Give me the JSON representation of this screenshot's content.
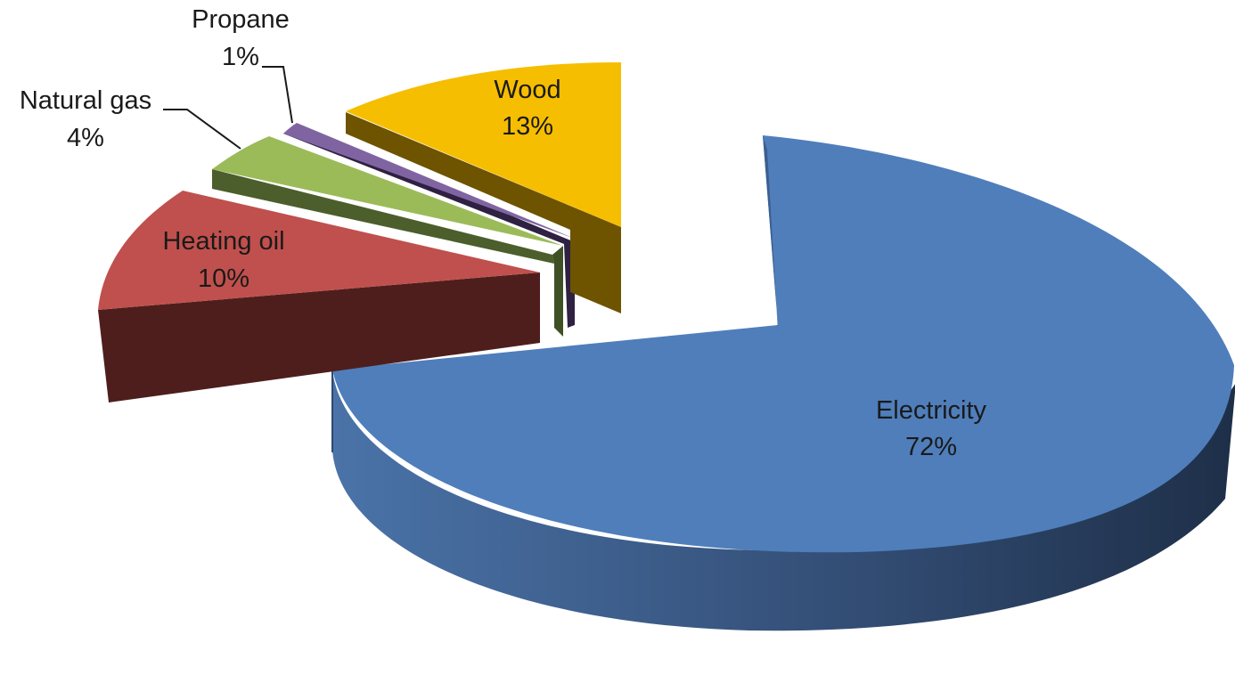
{
  "chart_data": {
    "type": "pie",
    "style": "3d-exploded",
    "title": "",
    "legend": "none",
    "slices": [
      {
        "label": "Electricity",
        "value": 72,
        "display": "72%",
        "color": "#4F7EBB"
      },
      {
        "label": "Heating oil",
        "value": 10,
        "display": "10%",
        "color": "#C0504D"
      },
      {
        "label": "Natural gas",
        "value": 4,
        "display": "4%",
        "color": "#9BBB59"
      },
      {
        "label": "Propane",
        "value": 1,
        "display": "1%",
        "color": "#8064A2"
      },
      {
        "label": "Wood",
        "value": 13,
        "display": "13%",
        "color": "#F6BE00"
      }
    ]
  }
}
